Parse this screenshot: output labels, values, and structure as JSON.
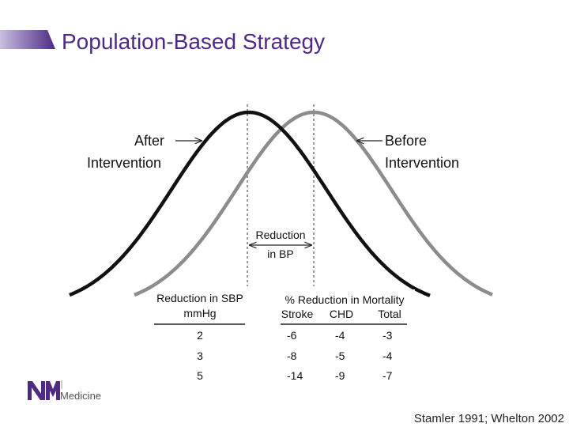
{
  "header": {
    "title": "Population-Based Strategy"
  },
  "diagram": {
    "after_label": [
      "After",
      "Intervention"
    ],
    "before_label": [
      "Before",
      "Intervention"
    ],
    "reduction_label": [
      "Reduction",
      "in BP"
    ]
  },
  "table": {
    "sbp_header": [
      "Reduction in SBP",
      "mmHg"
    ],
    "mortality_header": "% Reduction in Mortality",
    "columns": [
      "Stroke",
      "CHD",
      "Total"
    ],
    "rows": [
      [
        "2",
        "-6",
        "-4",
        "-3"
      ],
      [
        "3",
        "-8",
        "-5",
        "-4"
      ],
      [
        "5",
        "-14",
        "-9",
        "-7"
      ]
    ]
  },
  "logo": {
    "text": "Medicine"
  },
  "citation": "Stamler 1991;  Whelton 2002"
}
